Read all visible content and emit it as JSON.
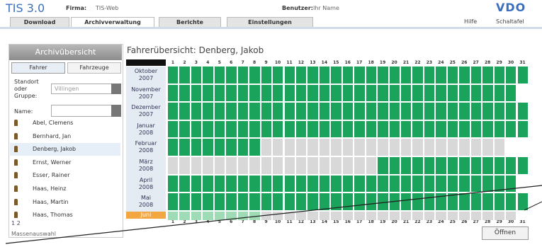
{
  "header": {
    "product": "TIS 3.0",
    "company_label": "Firma:",
    "company": "TIS-Web",
    "user_label": "Benutzer:",
    "user": "Ihr Name",
    "brand": "VDO"
  },
  "tabs": [
    {
      "label": "Download",
      "active": false
    },
    {
      "label": "Archivverwaltung",
      "active": true
    },
    {
      "label": "Berichte",
      "active": false
    },
    {
      "label": "Einstellungen",
      "active": false
    }
  ],
  "links": [
    "Hilfe",
    "Schaltafel"
  ],
  "sidebar": {
    "title": "Archivübersicht",
    "buttons": [
      "Fahrer",
      "Fahrzeuge"
    ],
    "location_label": "Standort oder Gruppe:",
    "location": "Villingen",
    "name_label": "Name:",
    "drivers": [
      "Abel, Clemens",
      "Bernhard, Jan",
      "Denberg, Jakob",
      "Ernst, Werner",
      "Esser, Rainer",
      "Haas, Heinz",
      "Haas, Martin",
      "Haas, Thomas"
    ],
    "selected": 2,
    "pages": [
      "1",
      "2"
    ],
    "footer": "Massenauswahl"
  },
  "overview": {
    "title": "Fahrerübersicht: Denberg, Jakob",
    "days": [
      1,
      2,
      3,
      4,
      5,
      6,
      7,
      8,
      9,
      10,
      11,
      12,
      13,
      14,
      15,
      16,
      17,
      18,
      19,
      20,
      21,
      22,
      23,
      24,
      25,
      26,
      27,
      28,
      29,
      30,
      31
    ],
    "months": [
      {
        "month": "Oktober",
        "year": "2007",
        "status": "ggggggggggggggggggggggggggggggg"
      },
      {
        "month": "November",
        "year": "2007",
        "status": "gggggggggggggggggggggggggggggg-"
      },
      {
        "month": "Dezember",
        "year": "2007",
        "status": "ggggggggggggggggggggggggggggggg"
      },
      {
        "month": "Januar",
        "year": "2008",
        "status": "ggggggggggggggggggggggggggggggg"
      },
      {
        "month": "Februar",
        "year": "2008",
        "status": "ggggggggxxxxxxxxxxxxxxxxxxxxx--"
      },
      {
        "month": "März",
        "year": "2008",
        "status": "xxxxxxxxxxxxxxxxxxggggggggggggg"
      },
      {
        "month": "April",
        "year": "2008",
        "status": "gggggggggggggggggggggggggggggg-"
      },
      {
        "month": "Mai",
        "year": "2008",
        "status": "ggggggggggggggggggggggggggggggg"
      },
      {
        "month": "Juni",
        "status": "llllllllxxxxxxxxxxxxxxxxxxxxxx-"
      }
    ],
    "button": "Öffnen"
  }
}
